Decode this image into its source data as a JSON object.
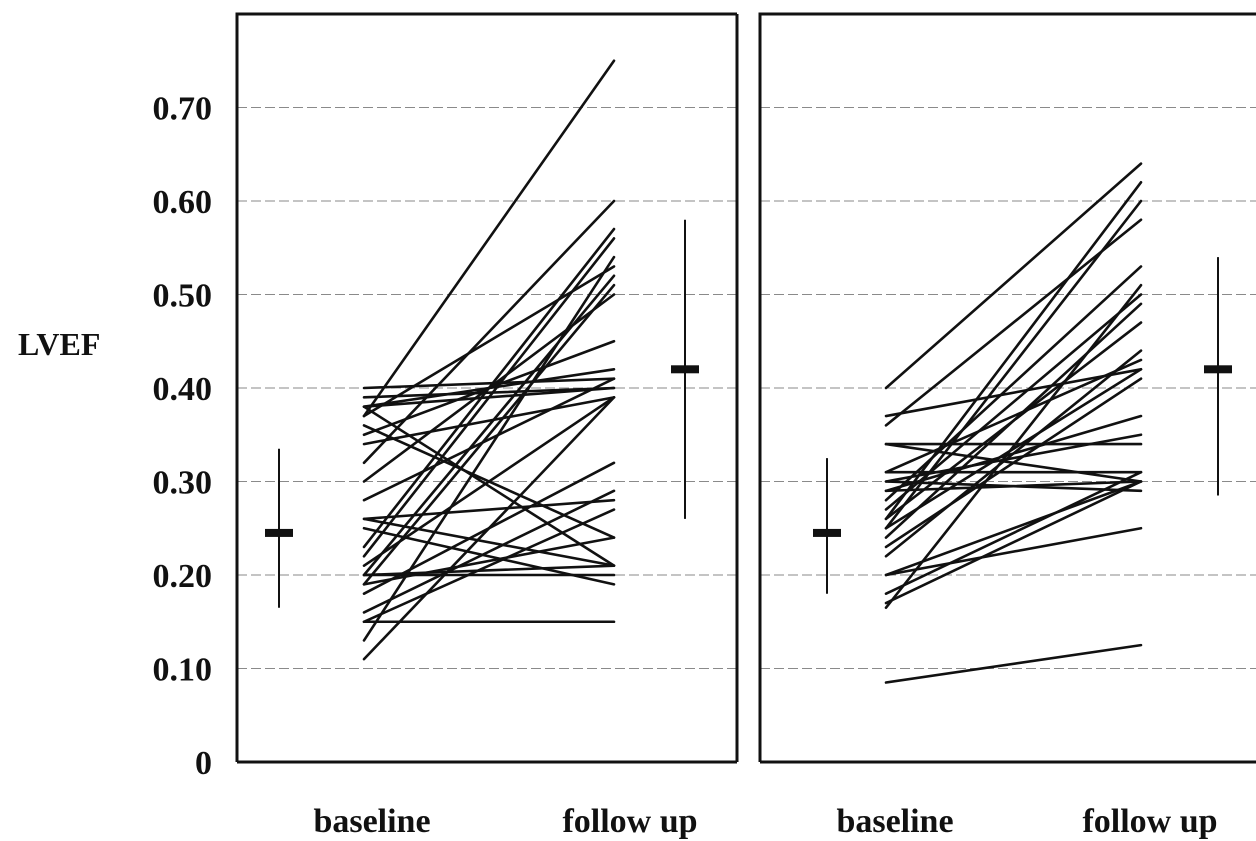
{
  "chart_data": {
    "type": "line",
    "ylabel": "LVEF",
    "ylim": [
      0,
      0.8
    ],
    "yticks": [
      0,
      0.1,
      0.2,
      0.3,
      0.4,
      0.5,
      0.6,
      0.7
    ],
    "ytick_labels": [
      "0",
      "0.10",
      "0.20",
      "0.30",
      "0.40",
      "0.50",
      "0.60",
      "0.70"
    ],
    "grid": true,
    "panels": [
      {
        "categories": [
          "baseline",
          "follow up"
        ],
        "summary": {
          "baseline": {
            "mean": 0.245,
            "low": 0.165,
            "high": 0.335
          },
          "follow_up": {
            "mean": 0.42,
            "low": 0.26,
            "high": 0.58
          }
        },
        "pairs": [
          [
            0.4,
            0.41
          ],
          [
            0.39,
            0.4
          ],
          [
            0.38,
            0.42
          ],
          [
            0.38,
            0.4
          ],
          [
            0.37,
            0.53
          ],
          [
            0.37,
            0.75
          ],
          [
            0.36,
            0.24
          ],
          [
            0.35,
            0.45
          ],
          [
            0.34,
            0.39
          ],
          [
            0.32,
            0.6
          ],
          [
            0.3,
            0.5
          ],
          [
            0.28,
            0.41
          ],
          [
            0.26,
            0.28
          ],
          [
            0.26,
            0.21
          ],
          [
            0.25,
            0.19
          ],
          [
            0.23,
            0.57
          ],
          [
            0.22,
            0.56
          ],
          [
            0.21,
            0.39
          ],
          [
            0.2,
            0.2
          ],
          [
            0.2,
            0.21
          ],
          [
            0.19,
            0.51
          ],
          [
            0.19,
            0.24
          ],
          [
            0.18,
            0.32
          ],
          [
            0.16,
            0.29
          ],
          [
            0.15,
            0.15
          ],
          [
            0.15,
            0.27
          ],
          [
            0.13,
            0.54
          ],
          [
            0.11,
            0.39
          ],
          [
            0.38,
            0.21
          ],
          [
            0.2,
            0.52
          ]
        ]
      },
      {
        "categories": [
          "baseline",
          "follow up"
        ],
        "summary": {
          "baseline": {
            "mean": 0.245,
            "low": 0.18,
            "high": 0.325
          },
          "follow_up": {
            "mean": 0.42,
            "low": 0.285,
            "high": 0.54
          }
        },
        "pairs": [
          [
            0.4,
            0.64
          ],
          [
            0.37,
            0.42
          ],
          [
            0.36,
            0.58
          ],
          [
            0.34,
            0.34
          ],
          [
            0.34,
            0.3
          ],
          [
            0.31,
            0.43
          ],
          [
            0.31,
            0.31
          ],
          [
            0.3,
            0.29
          ],
          [
            0.3,
            0.35
          ],
          [
            0.29,
            0.3
          ],
          [
            0.29,
            0.37
          ],
          [
            0.28,
            0.53
          ],
          [
            0.27,
            0.5
          ],
          [
            0.26,
            0.62
          ],
          [
            0.26,
            0.47
          ],
          [
            0.25,
            0.6
          ],
          [
            0.25,
            0.42
          ],
          [
            0.24,
            0.49
          ],
          [
            0.23,
            0.41
          ],
          [
            0.22,
            0.44
          ],
          [
            0.2,
            0.3
          ],
          [
            0.2,
            0.25
          ],
          [
            0.18,
            0.31
          ],
          [
            0.17,
            0.3
          ],
          [
            0.165,
            0.51
          ],
          [
            0.085,
            0.125
          ]
        ]
      }
    ]
  }
}
